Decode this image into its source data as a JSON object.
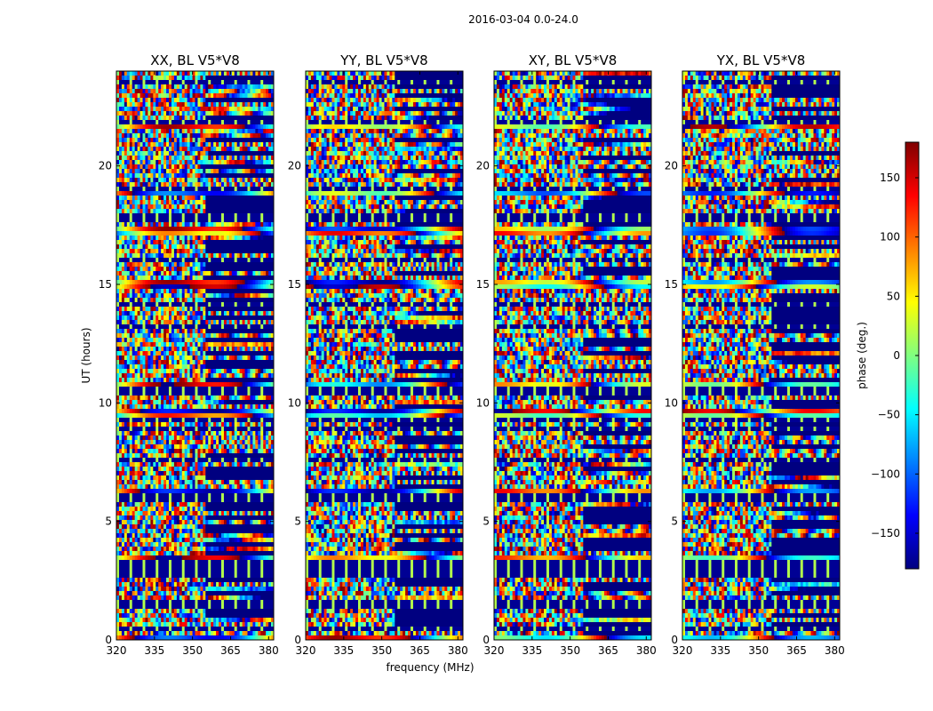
{
  "suptitle": "2016-03-04 0.0-24.0",
  "chart_data": {
    "type": "heatmap",
    "x_label": "frequency (MHz)",
    "y_label": "UT (hours)",
    "x_range": [
      320,
      382
    ],
    "y_range": [
      0,
      24
    ],
    "x_ticks": [
      320,
      335,
      350,
      365,
      380
    ],
    "x_tick_labels": [
      "320",
      "335",
      "350",
      "365",
      "380"
    ],
    "y_ticks": [
      0,
      5,
      10,
      15,
      20
    ],
    "y_tick_labels": [
      "0",
      "5",
      "10",
      "15",
      "20"
    ],
    "color_scale": {
      "label": "phase (deg.)",
      "range": [
        -180,
        180
      ],
      "colormap": "jet",
      "ticks": [
        150,
        100,
        50,
        0,
        -50,
        -100,
        -150
      ],
      "tick_labels": [
        "150",
        "100",
        "50",
        "0",
        "−50",
        "−100",
        "−150"
      ],
      "colors": [
        "#000080",
        "#0000ff",
        "#00ffff",
        "#7fff7f",
        "#ffff00",
        "#ff0000",
        "#800000"
      ]
    },
    "panels": [
      {
        "title": "XX, BL V5*V8"
      },
      {
        "title": "YY, BL V5*V8"
      },
      {
        "title": "XY, BL V5*V8"
      },
      {
        "title": "YX, BL V5*V8"
      }
    ],
    "flagged_bands_hours": [
      0.5,
      1.5,
      2.8,
      3.2,
      6.0,
      7.6,
      8.9,
      9.3,
      10.5,
      13.2,
      14.1,
      16.0,
      17.8,
      19.0,
      21.9,
      23.5
    ],
    "smooth_bands_hours": [
      0.1,
      3.4,
      6.3,
      9.5,
      10.7,
      15.0,
      17.2,
      18.9,
      21.8
    ]
  }
}
